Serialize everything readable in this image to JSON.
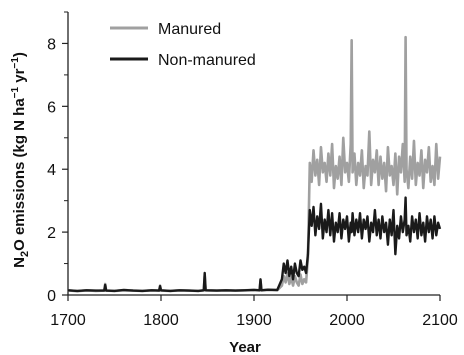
{
  "chart_data": {
    "type": "line",
    "title": "",
    "xlabel": "Year",
    "ylabel": {
      "p1": "N",
      "sub": "2",
      "p2": "O emissions (kg N ha",
      "sup1": "−1",
      "p3": " yr",
      "sup2": "−1",
      "p4": ")"
    },
    "xlim": [
      1700,
      2100
    ],
    "ylim": [
      0,
      9
    ],
    "xticks": [
      "1700",
      "1800",
      "1900",
      "2000",
      "2100"
    ],
    "xtick_values": [
      1700,
      1800,
      1900,
      2000,
      2100
    ],
    "yticks": [
      "0",
      "2",
      "4",
      "6",
      "8"
    ],
    "ytick_values": [
      0,
      2,
      4,
      6,
      8
    ],
    "grid": false,
    "legend_position": "top-left",
    "series": [
      {
        "name": "Manured",
        "color": "#a0a0a0",
        "x": [
          1700,
          1710,
          1720,
          1730,
          1739,
          1740,
          1741,
          1750,
          1760,
          1770,
          1780,
          1790,
          1798,
          1799,
          1800,
          1810,
          1820,
          1830,
          1840,
          1846,
          1847,
          1848,
          1860,
          1870,
          1880,
          1890,
          1900,
          1906,
          1907,
          1908,
          1915,
          1925,
          1930,
          1932,
          1934,
          1936,
          1938,
          1940,
          1942,
          1944,
          1946,
          1948,
          1950,
          1952,
          1954,
          1956,
          1958,
          1960,
          1962,
          1964,
          1966,
          1968,
          1970,
          1972,
          1974,
          1976,
          1978,
          1980,
          1982,
          1984,
          1986,
          1988,
          1990,
          1992,
          1994,
          1996,
          1998,
          2000,
          2002,
          2004,
          2005,
          2006,
          2008,
          2010,
          2012,
          2014,
          2016,
          2018,
          2020,
          2022,
          2024,
          2026,
          2028,
          2030,
          2032,
          2034,
          2036,
          2038,
          2040,
          2042,
          2044,
          2046,
          2048,
          2050,
          2052,
          2054,
          2056,
          2058,
          2060,
          2062,
          2063,
          2064,
          2066,
          2068,
          2070,
          2072,
          2074,
          2076,
          2078,
          2080,
          2082,
          2084,
          2086,
          2088,
          2090,
          2092,
          2094,
          2096,
          2098,
          2100
        ],
        "y": [
          0.15,
          0.12,
          0.15,
          0.13,
          0.14,
          0.35,
          0.14,
          0.13,
          0.15,
          0.14,
          0.13,
          0.15,
          0.14,
          0.3,
          0.14,
          0.13,
          0.15,
          0.14,
          0.13,
          0.15,
          0.6,
          0.15,
          0.14,
          0.15,
          0.14,
          0.15,
          0.16,
          0.15,
          0.45,
          0.15,
          0.16,
          0.15,
          0.3,
          0.6,
          0.4,
          0.7,
          0.35,
          0.55,
          0.3,
          0.6,
          0.4,
          0.3,
          0.65,
          0.35,
          0.5,
          0.4,
          1.2,
          4.2,
          3.6,
          4.6,
          3.8,
          4.3,
          3.5,
          4.7,
          3.9,
          4.2,
          3.6,
          4.5,
          3.8,
          4.8,
          3.4,
          4.1,
          3.7,
          4.4,
          3.5,
          5.0,
          3.9,
          4.2,
          3.6,
          4.8,
          8.1,
          3.9,
          4.5,
          3.5,
          4.2,
          3.8,
          4.6,
          3.4,
          4.1,
          3.8,
          5.2,
          3.5,
          4.3,
          3.9,
          4.6,
          3.5,
          4.4,
          3.7,
          4.2,
          3.3,
          4.7,
          3.8,
          4.1,
          3.5,
          4.5,
          3.2,
          4.4,
          3.9,
          4.8,
          3.6,
          8.2,
          4.0,
          3.4,
          4.4,
          3.7,
          4.9,
          3.5,
          4.2,
          3.8,
          4.6,
          3.4,
          4.3,
          3.9,
          4.7,
          3.6,
          4.1,
          3.5,
          4.8,
          3.7,
          4.4
        ]
      },
      {
        "name": "Non-manured",
        "color": "#1a1a1a",
        "x": [
          1700,
          1710,
          1720,
          1730,
          1739,
          1740,
          1741,
          1750,
          1760,
          1770,
          1780,
          1790,
          1798,
          1799,
          1800,
          1810,
          1820,
          1830,
          1840,
          1846,
          1847,
          1848,
          1860,
          1870,
          1880,
          1890,
          1900,
          1906,
          1907,
          1908,
          1915,
          1925,
          1930,
          1932,
          1934,
          1936,
          1938,
          1940,
          1942,
          1944,
          1946,
          1948,
          1950,
          1952,
          1954,
          1956,
          1958,
          1960,
          1962,
          1964,
          1966,
          1968,
          1970,
          1972,
          1974,
          1976,
          1978,
          1980,
          1982,
          1984,
          1986,
          1988,
          1990,
          1992,
          1994,
          1996,
          1998,
          2000,
          2002,
          2004,
          2005,
          2006,
          2008,
          2010,
          2012,
          2014,
          2016,
          2018,
          2020,
          2022,
          2024,
          2026,
          2028,
          2030,
          2032,
          2034,
          2036,
          2038,
          2040,
          2042,
          2044,
          2046,
          2048,
          2050,
          2052,
          2054,
          2056,
          2058,
          2060,
          2062,
          2063,
          2064,
          2066,
          2068,
          2070,
          2072,
          2074,
          2076,
          2078,
          2080,
          2082,
          2084,
          2086,
          2088,
          2090,
          2092,
          2094,
          2096,
          2098,
          2100
        ],
        "y": [
          0.15,
          0.13,
          0.15,
          0.14,
          0.14,
          0.32,
          0.14,
          0.13,
          0.16,
          0.14,
          0.13,
          0.15,
          0.14,
          0.28,
          0.15,
          0.13,
          0.15,
          0.14,
          0.13,
          0.15,
          0.7,
          0.15,
          0.14,
          0.15,
          0.14,
          0.15,
          0.16,
          0.15,
          0.5,
          0.15,
          0.17,
          0.16,
          0.5,
          1.0,
          0.7,
          1.1,
          0.6,
          0.9,
          0.5,
          1.0,
          0.7,
          0.6,
          1.1,
          0.8,
          0.9,
          0.7,
          1.3,
          2.7,
          2.2,
          2.8,
          1.9,
          2.5,
          2.1,
          2.9,
          1.8,
          2.4,
          2.0,
          2.7,
          1.9,
          2.6,
          1.7,
          2.3,
          2.0,
          2.6,
          1.8,
          2.4,
          2.1,
          2.5,
          1.7,
          2.3,
          2.0,
          2.6,
          1.9,
          2.4,
          2.0,
          2.6,
          1.8,
          2.4,
          2.1,
          2.5,
          1.7,
          2.3,
          2.0,
          2.7,
          1.9,
          2.4,
          1.8,
          2.5,
          2.0,
          2.3,
          1.6,
          2.4,
          1.9,
          2.7,
          1.3,
          2.2,
          1.8,
          2.5,
          2.0,
          2.4,
          3.1,
          1.9,
          2.2,
          1.7,
          2.5,
          2.0,
          2.4,
          1.8,
          2.6,
          1.9,
          2.3,
          1.7,
          2.5,
          2.0,
          2.4,
          1.8,
          2.5,
          1.9,
          2.3,
          2.1
        ]
      }
    ]
  }
}
